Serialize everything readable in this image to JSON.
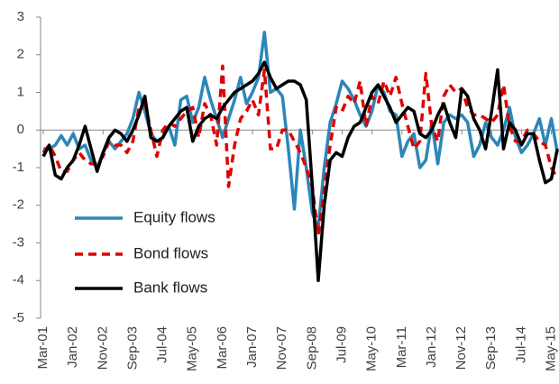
{
  "chart_data": {
    "type": "line",
    "categories": [
      "Mar-01",
      null,
      null,
      null,
      null,
      "Jan-02",
      null,
      null,
      null,
      null,
      "Nov-02",
      null,
      null,
      null,
      null,
      "Sep-03",
      null,
      null,
      null,
      null,
      "Jul-04",
      null,
      null,
      null,
      null,
      "May-05",
      null,
      null,
      null,
      null,
      "Mar-06",
      null,
      null,
      null,
      null,
      "Jan-07",
      null,
      null,
      null,
      null,
      "Nov-07",
      null,
      null,
      null,
      null,
      "Sep-08",
      null,
      null,
      null,
      null,
      "Jul-09",
      null,
      null,
      null,
      null,
      "May-10",
      null,
      null,
      null,
      null,
      "Mar-11",
      null,
      null,
      null,
      null,
      "Jan-12",
      null,
      null,
      null,
      null,
      "Nov-12",
      null,
      null,
      null,
      null,
      "Sep-13",
      null,
      null,
      null,
      null,
      "Jul-14",
      null,
      null,
      null,
      null,
      "May-15",
      null
    ],
    "series": [
      {
        "name": "Equity flows",
        "color": "#2b87b8",
        "dash": false,
        "values": [
          -0.5,
          -0.5,
          -0.4,
          -0.15,
          -0.4,
          -0.1,
          -0.5,
          -0.4,
          -0.8,
          -1.0,
          -0.6,
          -0.3,
          -0.5,
          -0.3,
          -0.1,
          0.3,
          1.0,
          0.5,
          -0.1,
          -0.3,
          -0.2,
          0.1,
          -0.4,
          0.8,
          0.9,
          0.2,
          0.6,
          1.4,
          0.8,
          0.3,
          -0.2,
          0.3,
          0.8,
          1.4,
          0.7,
          1.0,
          1.4,
          2.6,
          1.0,
          1.1,
          0.9,
          -0.5,
          -2.1,
          0.0,
          -1.0,
          -2.2,
          -2.6,
          -1.0,
          0.2,
          0.7,
          1.3,
          1.1,
          0.8,
          0.4,
          0.1,
          0.5,
          1.2,
          1.0,
          0.5,
          0.4,
          -0.7,
          -0.3,
          -0.1,
          -1.0,
          -0.8,
          0.2,
          -0.9,
          0.2,
          0.4,
          0.3,
          0.4,
          0.2,
          -0.7,
          -0.4,
          0.2,
          -0.2,
          -0.4,
          0.0,
          0.6,
          -0.2,
          -0.6,
          -0.4,
          -0.1,
          0.3,
          -0.4,
          0.3,
          -0.6
        ]
      },
      {
        "name": "Bond flows",
        "color": "#e00000",
        "dash": true,
        "values": [
          -0.6,
          -0.4,
          -0.7,
          -1.1,
          -1.1,
          -0.8,
          -0.6,
          -0.8,
          -0.9,
          -0.9,
          -0.7,
          -0.3,
          -0.4,
          -0.4,
          -0.6,
          -0.3,
          0.6,
          0.7,
          0.0,
          -0.7,
          0.0,
          0.2,
          0.1,
          0.3,
          0.5,
          0.6,
          -0.2,
          0.7,
          0.4,
          -0.4,
          1.7,
          -1.5,
          -0.4,
          0.3,
          0.5,
          0.8,
          0.4,
          1.6,
          -0.5,
          -0.5,
          0.0,
          0.0,
          -0.3,
          -0.6,
          -1.0,
          -1.5,
          -2.8,
          -1.6,
          -0.4,
          0.6,
          0.5,
          0.9,
          0.7,
          1.3,
          0.1,
          0.9,
          0.7,
          1.3,
          0.9,
          1.4,
          0.7,
          0.1,
          -0.5,
          -0.3,
          1.5,
          0.1,
          -0.3,
          0.9,
          1.2,
          1.0,
          1.1,
          0.6,
          0.4,
          0.4,
          0.3,
          0.2,
          0.4,
          1.2,
          0.1,
          -0.3,
          -0.3,
          0.0,
          -0.1,
          -0.3,
          -0.4,
          -1.0,
          -1.3
        ]
      },
      {
        "name": "Bank flows",
        "color": "#000000",
        "dash": false,
        "values": [
          -0.7,
          -0.4,
          -1.2,
          -1.3,
          -1.0,
          -0.8,
          -0.4,
          0.1,
          -0.5,
          -1.1,
          -0.6,
          -0.2,
          0.0,
          -0.1,
          -0.3,
          0.0,
          0.4,
          0.9,
          -0.2,
          -0.3,
          -0.2,
          0.1,
          0.3,
          0.5,
          0.6,
          -0.3,
          0.1,
          0.3,
          0.4,
          0.3,
          0.6,
          0.8,
          1.0,
          1.1,
          1.2,
          1.3,
          1.5,
          1.8,
          1.4,
          1.1,
          1.2,
          1.3,
          1.3,
          1.2,
          0.8,
          -1.5,
          -4.0,
          -2.0,
          -0.8,
          -0.6,
          -0.7,
          -0.2,
          0.1,
          0.2,
          0.6,
          1.0,
          1.2,
          0.9,
          0.6,
          0.2,
          0.4,
          0.6,
          0.5,
          -0.1,
          -0.2,
          0.0,
          0.4,
          0.7,
          0.2,
          -0.2,
          1.1,
          0.9,
          0.3,
          0.0,
          -0.5,
          0.5,
          1.6,
          -0.5,
          0.2,
          0.0,
          -0.4,
          -0.1,
          -0.1,
          -0.8,
          -1.4,
          -1.3,
          -0.5
        ]
      }
    ],
    "ylim": [
      -5,
      3
    ],
    "yticks": [
      -5,
      -4,
      -3,
      -2,
      -1,
      0,
      1,
      2,
      3
    ],
    "grid": false,
    "legend": "lower-left"
  }
}
